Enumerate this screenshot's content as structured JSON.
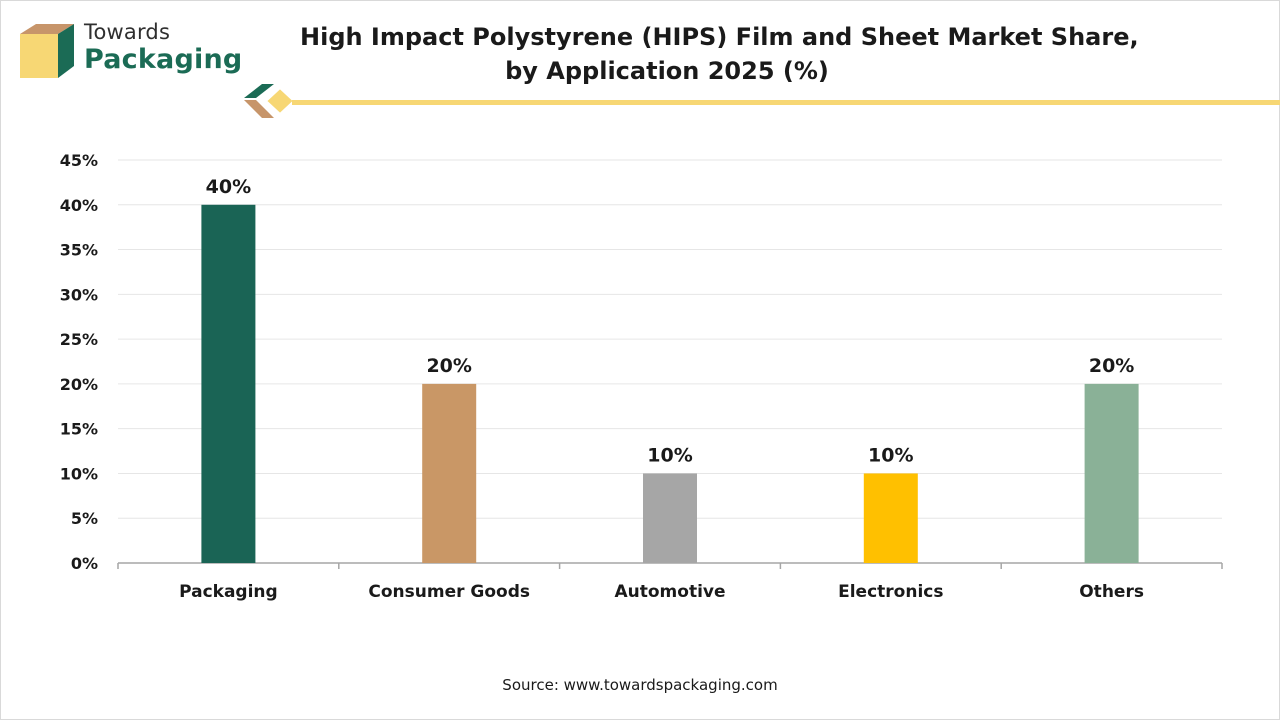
{
  "brand": {
    "line1": "Towards",
    "line2": "Packaging"
  },
  "title": {
    "line1": "High Impact Polystyrene (HIPS) Film and Sheet Market Share,",
    "line2": "by Application 2025 (%)"
  },
  "source": "Source: www.towardspackaging.com",
  "colors": {
    "brand_green": "#1b6b55",
    "brand_tan": "#c7956a",
    "brand_yellow": "#f7d774"
  },
  "chart_data": {
    "type": "bar",
    "categories": [
      "Packaging",
      "Consumer Goods",
      "Automotive",
      "Electronics",
      "Others"
    ],
    "values": [
      40,
      20,
      10,
      10,
      20
    ],
    "value_labels": [
      "40%",
      "20%",
      "10%",
      "10%",
      "20%"
    ],
    "bar_colors": [
      "#1a6455",
      "#c99766",
      "#a6a6a6",
      "#ffc000",
      "#8ab197"
    ],
    "ylim": [
      0,
      45
    ],
    "yticks": [
      0,
      5,
      10,
      15,
      20,
      25,
      30,
      35,
      40,
      45
    ],
    "ytick_labels": [
      "0%",
      "5%",
      "10%",
      "15%",
      "20%",
      "25%",
      "30%",
      "35%",
      "40%",
      "45%"
    ],
    "xlabel": "",
    "ylabel": "",
    "grid": true,
    "legend": "none"
  }
}
